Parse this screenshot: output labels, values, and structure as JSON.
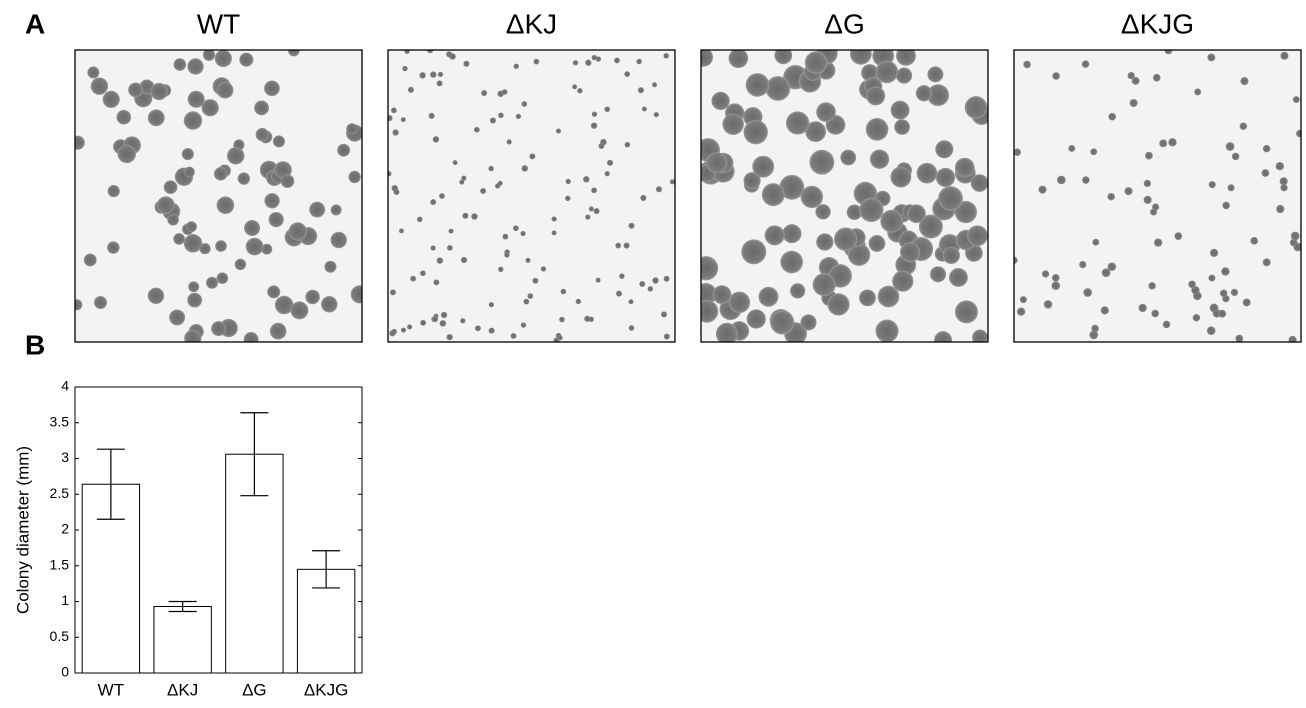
{
  "figure": {
    "panel_a_label": "A",
    "panel_b_label": "B",
    "images": [
      {
        "title": "WT"
      },
      {
        "title": "ΔKJ"
      },
      {
        "title": "ΔG"
      },
      {
        "title": "ΔKJG"
      }
    ]
  },
  "chart_data": {
    "type": "bar",
    "categories": [
      "WT",
      "ΔKJ",
      "ΔG",
      "ΔKJG"
    ],
    "values": [
      2.64,
      0.93,
      3.06,
      1.45
    ],
    "errors": [
      0.49,
      0.07,
      0.58,
      0.26
    ],
    "color": "#ffffff",
    "y_label": "Colony diameter (mm)",
    "ylim": [
      0,
      4
    ],
    "yticks": [
      0,
      0.5,
      1,
      1.5,
      2,
      2.5,
      3,
      3.5,
      4
    ],
    "grid": false
  }
}
